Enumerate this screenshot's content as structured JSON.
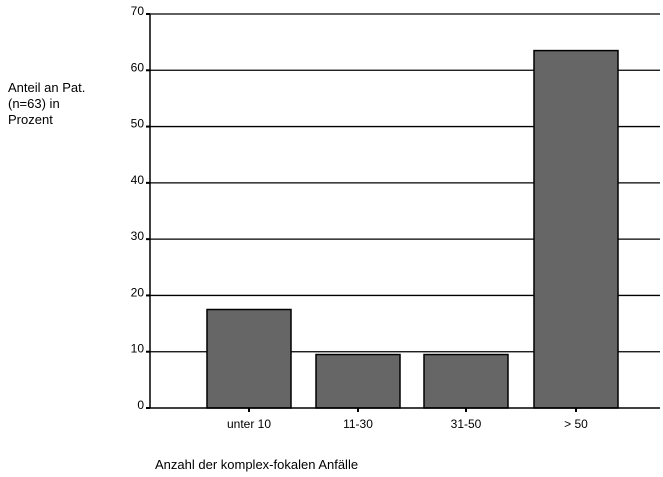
{
  "chart_data": {
    "type": "bar",
    "categories": [
      "unter 10",
      "11-30",
      "31-50",
      "> 50"
    ],
    "values": [
      17.5,
      9.5,
      9.5,
      63.5
    ],
    "ylabel_lines": [
      "Anteil an Pat.",
      "(n=63) in",
      "Prozent"
    ],
    "xlabel": "Anzahl der komplex-fokalen Anfälle",
    "ylim": [
      0,
      70
    ],
    "yticks": [
      "0",
      "10",
      "20",
      "30",
      "40",
      "50",
      "60",
      "70"
    ],
    "grid": true,
    "bar_color": "#666666"
  }
}
